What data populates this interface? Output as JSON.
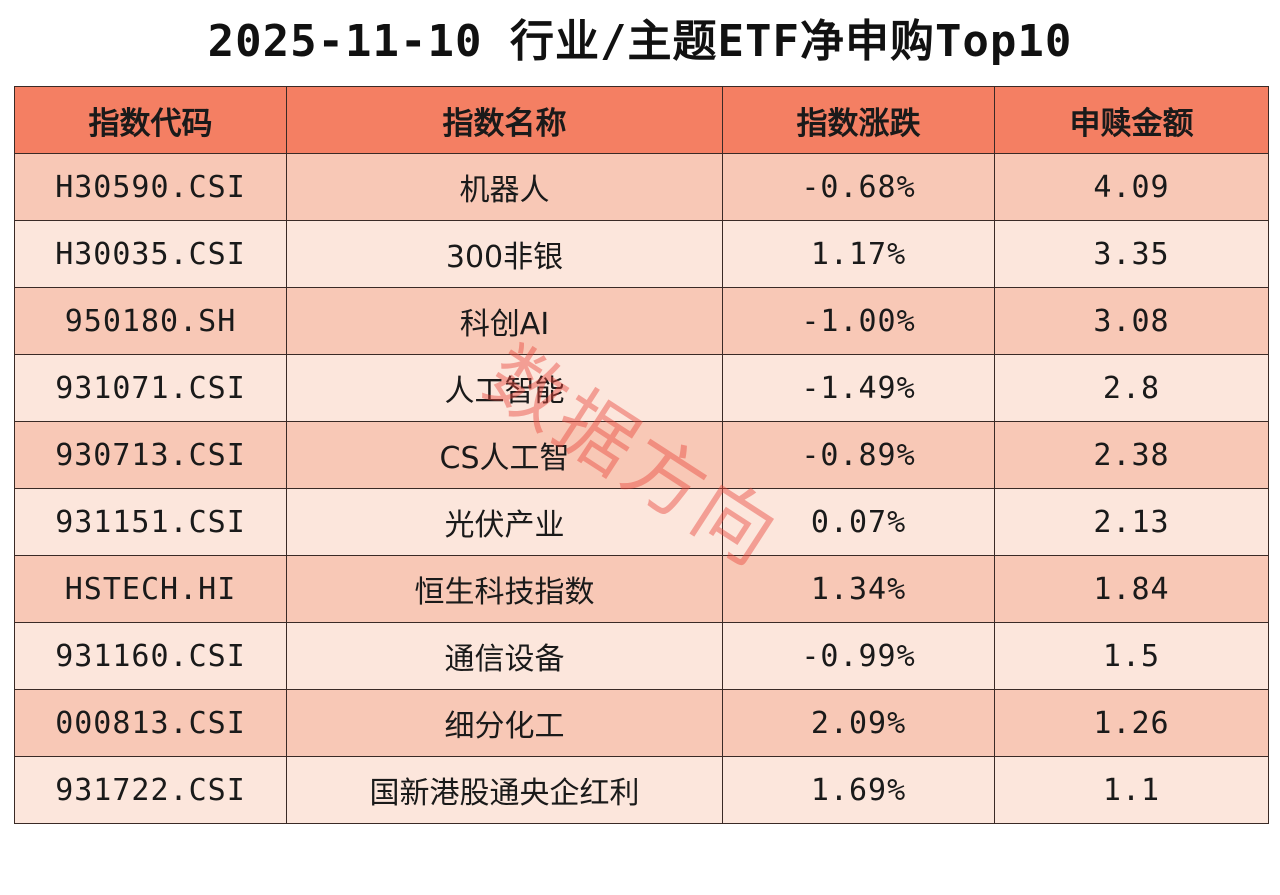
{
  "title": "2025-11-10 行业/主题ETF净申购Top10",
  "columns": [
    "指数代码",
    "指数名称",
    "指数涨跌",
    "申赎金额"
  ],
  "rows": [
    {
      "code": "H30590.CSI",
      "name": "机器人",
      "change": "-0.68%",
      "amount": "4.09"
    },
    {
      "code": "H30035.CSI",
      "name": "300非银",
      "change": "1.17%",
      "amount": "3.35"
    },
    {
      "code": "950180.SH",
      "name": "科创AI",
      "change": "-1.00%",
      "amount": "3.08"
    },
    {
      "code": "931071.CSI",
      "name": "人工智能",
      "change": "-1.49%",
      "amount": "2.8"
    },
    {
      "code": "930713.CSI",
      "name": "CS人工智",
      "change": "-0.89%",
      "amount": "2.38"
    },
    {
      "code": "931151.CSI",
      "name": "光伏产业",
      "change": "0.07%",
      "amount": "2.13"
    },
    {
      "code": "HSTECH.HI",
      "name": "恒生科技指数",
      "change": "1.34%",
      "amount": "1.84"
    },
    {
      "code": "931160.CSI",
      "name": "通信设备",
      "change": "-0.99%",
      "amount": "1.5"
    },
    {
      "code": "000813.CSI",
      "name": "细分化工",
      "change": "2.09%",
      "amount": "1.26"
    },
    {
      "code": "931722.CSI",
      "name": "国新港股通央企红利",
      "change": "1.69%",
      "amount": "1.1"
    }
  ],
  "chart_data": {
    "type": "table",
    "title": "2025-11-10 行业/主题ETF净申购Top10",
    "columns": [
      "指数代码",
      "指数名称",
      "指数涨跌",
      "申赎金额"
    ],
    "categories": [
      "H30590.CSI",
      "H30035.CSI",
      "950180.SH",
      "931071.CSI",
      "930713.CSI",
      "931151.CSI",
      "HSTECH.HI",
      "931160.CSI",
      "000813.CSI",
      "931722.CSI"
    ],
    "names": [
      "机器人",
      "300非银",
      "科创AI",
      "人工智能",
      "CS人工智",
      "光伏产业",
      "恒生科技指数",
      "通信设备",
      "细分化工",
      "国新港股通央企红利"
    ],
    "change_pct": [
      -0.68,
      1.17,
      -1.0,
      -1.49,
      -0.89,
      0.07,
      1.34,
      -0.99,
      2.09,
      1.69
    ],
    "amount": [
      4.09,
      3.35,
      3.08,
      2.8,
      2.38,
      2.13,
      1.84,
      1.5,
      1.26,
      1.1
    ]
  },
  "watermark": {
    "text": "数据方向",
    "color": "#e8463c"
  },
  "colors": {
    "header_bg": "#f47f63",
    "row_odd_bg": "#f8c8b6",
    "row_even_bg": "#fce6dc",
    "border": "#3a2a26"
  }
}
